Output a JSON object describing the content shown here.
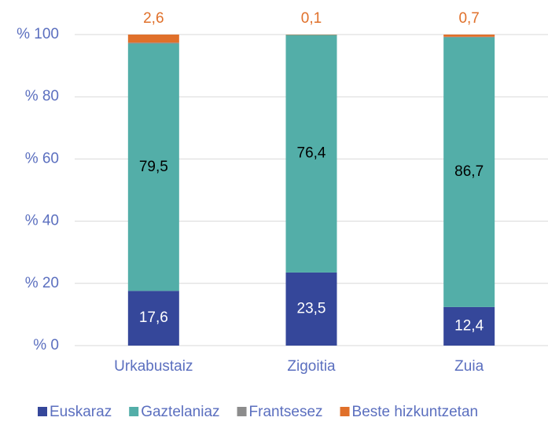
{
  "chart_data": {
    "type": "stacked_bar",
    "categories": [
      "Urkabustaiz",
      "Zigoitia",
      "Zuia"
    ],
    "series": [
      {
        "name": "Euskaraz",
        "color": "#35479a",
        "values": [
          17.6,
          23.5,
          12.4
        ],
        "value_labels": [
          "17,6",
          "23,5",
          "12,4"
        ]
      },
      {
        "name": "Gaztelaniaz",
        "color": "#53aea8",
        "values": [
          79.5,
          76.4,
          86.7
        ],
        "value_labels": [
          "79,5",
          "76,4",
          "86,7"
        ]
      },
      {
        "name": "Frantsesez",
        "color": "#8c8c8c",
        "values": [
          0.3,
          0.0,
          0.2
        ]
      },
      {
        "name": "Beste hizkuntzetan",
        "color": "#e0702a",
        "values": [
          2.6,
          0.1,
          0.7
        ],
        "value_labels": [
          "2,6",
          "0,1",
          "0,7"
        ]
      }
    ],
    "ylim": [
      0,
      100
    ],
    "yticks": [
      {
        "value": 0,
        "label": "% 0"
      },
      {
        "value": 20,
        "label": "% 20"
      },
      {
        "value": 40,
        "label": "% 40"
      },
      {
        "value": 60,
        "label": "% 60"
      },
      {
        "value": 80,
        "label": "% 80"
      },
      {
        "value": 100,
        "label": "% 100"
      }
    ],
    "grid": true,
    "legend": "bottom"
  }
}
